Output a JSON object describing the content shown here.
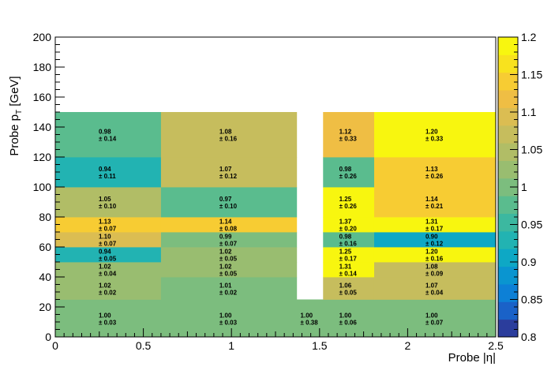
{
  "chart_data": {
    "type": "heatmap",
    "title": "",
    "xlabel": "Probe |η|",
    "ylabel_main": "Probe p",
    "ylabel_sub": "T",
    "ylabel_unit": " [GeV]",
    "xlim": [
      0,
      2.5
    ],
    "ylim": [
      0,
      200
    ],
    "zlim": [
      0.8,
      1.2
    ],
    "x_edges": [
      0,
      0.6,
      1.37,
      1.52,
      1.81,
      2.5
    ],
    "y_edges": [
      0,
      25,
      40,
      50,
      60,
      70,
      80,
      100,
      120,
      150,
      200
    ],
    "x_ticks": [
      "0",
      "0.5",
      "1",
      "1.5",
      "2",
      "2.5"
    ],
    "y_ticks": [
      "0",
      "20",
      "40",
      "60",
      "80",
      "100",
      "120",
      "140",
      "160",
      "180",
      "200"
    ],
    "z_ticks": [
      "0.8",
      "0.85",
      "0.9",
      "0.95",
      "1",
      "1.05",
      "1.1",
      "1.15",
      "1.2"
    ],
    "cells": [
      {
        "col": 0,
        "row": 0,
        "value": "1.00",
        "error": "± 0.03"
      },
      {
        "col": 1,
        "row": 0,
        "value": "1.00",
        "error": "± 0.03"
      },
      {
        "col": 2,
        "row": 0,
        "value": "1.00",
        "error": "± 0.38"
      },
      {
        "col": 3,
        "row": 0,
        "value": "1.00",
        "error": "± 0.06"
      },
      {
        "col": 4,
        "row": 0,
        "value": "1.00",
        "error": "± 0.07"
      },
      {
        "col": 0,
        "row": 1,
        "value": "1.02",
        "error": "± 0.02"
      },
      {
        "col": 1,
        "row": 1,
        "value": "1.01",
        "error": "± 0.02"
      },
      {
        "col": 3,
        "row": 1,
        "value": "1.06",
        "error": "± 0.05"
      },
      {
        "col": 4,
        "row": 1,
        "value": "1.07",
        "error": "± 0.04"
      },
      {
        "col": 0,
        "row": 2,
        "value": "1.02",
        "error": "± 0.04"
      },
      {
        "col": 1,
        "row": 2,
        "value": "1.02",
        "error": "± 0.05"
      },
      {
        "col": 3,
        "row": 2,
        "value": "1.31",
        "error": "± 0.14"
      },
      {
        "col": 4,
        "row": 2,
        "value": "1.08",
        "error": "± 0.09"
      },
      {
        "col": 0,
        "row": 3,
        "value": "0.94",
        "error": "± 0.05"
      },
      {
        "col": 1,
        "row": 3,
        "value": "1.02",
        "error": "± 0.05"
      },
      {
        "col": 3,
        "row": 3,
        "value": "1.25",
        "error": "± 0.17"
      },
      {
        "col": 4,
        "row": 3,
        "value": "1.20",
        "error": "± 0.16"
      },
      {
        "col": 0,
        "row": 4,
        "value": "1.10",
        "error": "± 0.07"
      },
      {
        "col": 1,
        "row": 4,
        "value": "0.99",
        "error": "± 0.07"
      },
      {
        "col": 3,
        "row": 4,
        "value": "0.98",
        "error": "± 0.16"
      },
      {
        "col": 4,
        "row": 4,
        "value": "0.90",
        "error": "± 0.12"
      },
      {
        "col": 0,
        "row": 5,
        "value": "1.13",
        "error": "± 0.07"
      },
      {
        "col": 1,
        "row": 5,
        "value": "1.14",
        "error": "± 0.08"
      },
      {
        "col": 3,
        "row": 5,
        "value": "1.37",
        "error": "± 0.20"
      },
      {
        "col": 4,
        "row": 5,
        "value": "1.31",
        "error": "± 0.17"
      },
      {
        "col": 0,
        "row": 6,
        "value": "1.05",
        "error": "± 0.10"
      },
      {
        "col": 1,
        "row": 6,
        "value": "0.97",
        "error": "± 0.10"
      },
      {
        "col": 3,
        "row": 6,
        "value": "1.25",
        "error": "± 0.26"
      },
      {
        "col": 4,
        "row": 6,
        "value": "1.14",
        "error": "± 0.21"
      },
      {
        "col": 0,
        "row": 7,
        "value": "0.94",
        "error": "± 0.11"
      },
      {
        "col": 1,
        "row": 7,
        "value": "1.07",
        "error": "± 0.12"
      },
      {
        "col": 3,
        "row": 7,
        "value": "0.98",
        "error": "± 0.26"
      },
      {
        "col": 4,
        "row": 7,
        "value": "1.13",
        "error": "± 0.26"
      },
      {
        "col": 0,
        "row": 8,
        "value": "0.98",
        "error": "± 0.14"
      },
      {
        "col": 1,
        "row": 8,
        "value": "1.08",
        "error": "± 0.16"
      },
      {
        "col": 3,
        "row": 8,
        "value": "1.12",
        "error": "± 0.33"
      },
      {
        "col": 4,
        "row": 8,
        "value": "1.20",
        "error": "± 0.33"
      }
    ],
    "palette": [
      "#2b3d9c",
      "#1a62c8",
      "#0d80d6",
      "#0a95d0",
      "#0ea8c5",
      "#22b3b2",
      "#3cb8a0",
      "#5abc8e",
      "#7cbd7e",
      "#99bd70",
      "#b1bd66",
      "#c6bd5d",
      "#dbbd52",
      "#efbe44",
      "#f7cc33",
      "#f8e21e",
      "#f8f60f"
    ],
    "missing_color": "#ffffff"
  }
}
